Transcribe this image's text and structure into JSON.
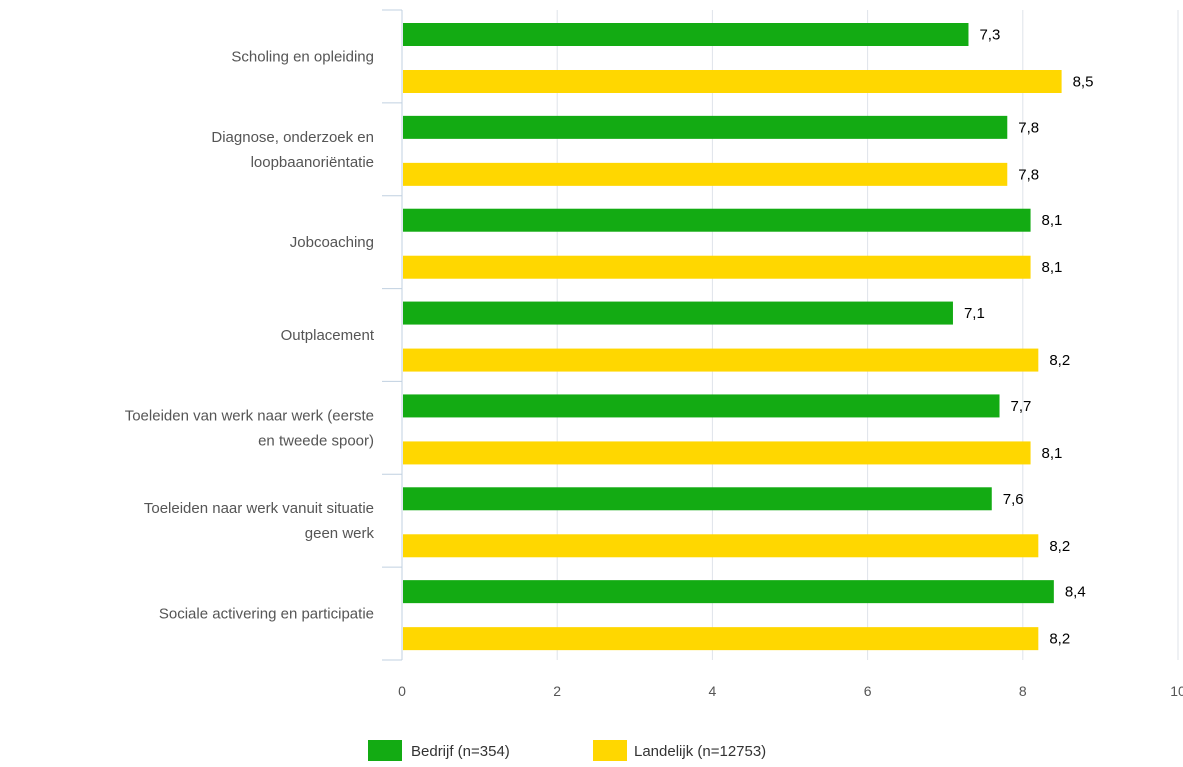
{
  "chart_data": {
    "type": "bar",
    "orientation": "horizontal",
    "categories": [
      [
        "Scholing en opleiding"
      ],
      [
        "Diagnose, onderzoek en",
        "loopbaanoriëntatie"
      ],
      [
        "Jobcoaching"
      ],
      [
        "Outplacement"
      ],
      [
        "Toeleiden van werk naar werk (eerste",
        "en tweede spoor)"
      ],
      [
        "Toeleiden naar werk vanuit situatie",
        "geen werk"
      ],
      [
        "Sociale activering en participatie"
      ]
    ],
    "series": [
      {
        "name": "Bedrijf (n=354)",
        "color": "#13ab13",
        "values": [
          7.3,
          7.8,
          8.1,
          7.1,
          7.7,
          7.6,
          8.4
        ],
        "labels": [
          "7,3",
          "7,8",
          "8,1",
          "7,1",
          "7,7",
          "7,6",
          "8,4"
        ]
      },
      {
        "name": "Landelijk (n=12753)",
        "color": "#ffd700",
        "values": [
          8.5,
          7.8,
          8.1,
          8.2,
          8.1,
          8.2,
          8.2
        ],
        "labels": [
          "8,5",
          "7,8",
          "8,1",
          "8,2",
          "8,1",
          "8,2",
          "8,2"
        ]
      }
    ],
    "xlim": [
      0,
      10
    ],
    "xticks": [
      "0",
      "2",
      "4",
      "6",
      "8",
      "10"
    ],
    "grid": true,
    "legend_position": "bottom",
    "title": "",
    "xlabel": "",
    "ylabel": ""
  }
}
